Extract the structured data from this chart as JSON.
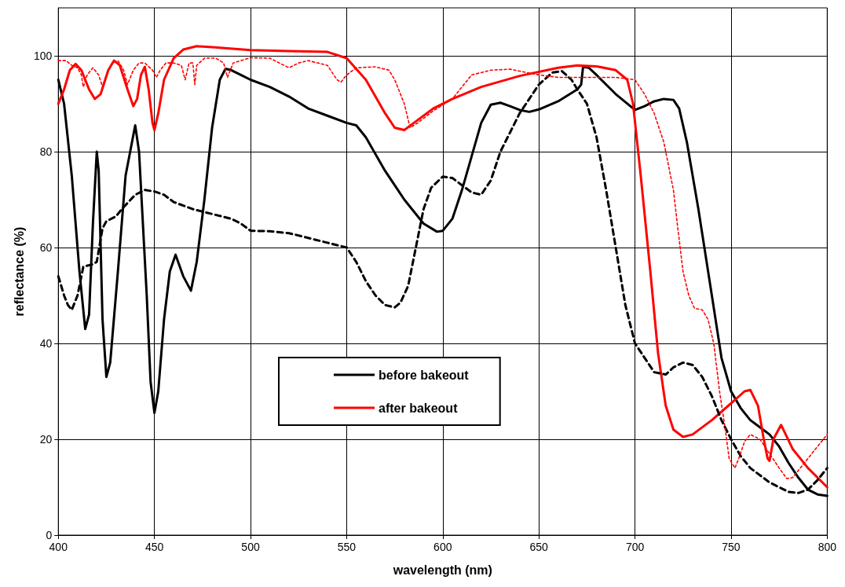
{
  "chart_data": {
    "type": "line",
    "xlabel": "wavelength (nm)",
    "ylabel": "reflectance (%)",
    "xlim": [
      400,
      800
    ],
    "xticks": [
      400,
      450,
      500,
      550,
      600,
      650,
      700,
      750,
      800
    ],
    "ylim": [
      0,
      110
    ],
    "yticks": [
      0,
      20,
      40,
      60,
      80,
      100
    ],
    "grid": true,
    "legend": "bottom",
    "marker": "none",
    "series": [
      {
        "name": "before bakeout",
        "color": "#000000",
        "line_style": "solid",
        "x": [
          400,
          403,
          407,
          411,
          414,
          416,
          418,
          420,
          421,
          423,
          425,
          427,
          431,
          435,
          440,
          442,
          446,
          448,
          450,
          452,
          455,
          458,
          461,
          465,
          469,
          472,
          476,
          480,
          484,
          487,
          490,
          495,
          500,
          510,
          520,
          530,
          540,
          550,
          555,
          560,
          570,
          580,
          590,
          597,
          600,
          605,
          610,
          615,
          620,
          625,
          630,
          635,
          640,
          645,
          650,
          660,
          670,
          672,
          673,
          676,
          680,
          690,
          700,
          705,
          710,
          715,
          720,
          723,
          727,
          733,
          740,
          745,
          750,
          755,
          760,
          765,
          770,
          775,
          780,
          785,
          790,
          795,
          800
        ],
        "values": [
          95,
          90,
          75,
          55,
          43,
          46,
          65,
          80,
          76,
          45,
          33,
          36,
          55,
          75,
          85.5,
          80,
          50,
          32,
          25.5,
          30,
          45,
          55,
          58.5,
          54,
          51,
          57,
          70,
          85,
          95,
          97.3,
          97,
          96,
          95,
          93.5,
          91.5,
          89,
          87.5,
          86,
          85.5,
          83,
          76,
          70,
          65,
          63.3,
          63.5,
          66,
          72,
          79,
          86,
          89.8,
          90.2,
          89.5,
          88.7,
          88.3,
          88.8,
          90.5,
          93,
          94,
          97.7,
          97.5,
          96,
          92,
          88.7,
          89.5,
          90.5,
          91,
          90.8,
          89,
          82,
          68,
          50,
          37,
          30,
          26.5,
          24,
          22.5,
          21,
          18.5,
          15,
          12,
          9.5,
          8.5,
          8.2
        ]
      },
      {
        "name": "after bakeout",
        "color": "#ff0000",
        "line_style": "solid",
        "x": [
          400,
          403,
          406,
          409,
          412,
          416,
          419,
          422,
          426,
          429,
          432,
          436,
          439,
          441,
          443,
          445,
          447,
          449,
          450,
          452,
          455,
          460,
          465,
          472,
          480,
          500,
          520,
          540,
          550,
          560,
          570,
          575,
          580,
          585,
          595,
          605,
          620,
          640,
          660,
          670,
          680,
          690,
          696,
          699,
          703,
          708,
          712,
          716,
          720,
          725,
          730,
          740,
          750,
          757,
          760,
          764,
          767,
          769,
          770,
          772,
          776,
          782,
          790,
          800
        ],
        "values": [
          90,
          93,
          97,
          98.3,
          97,
          93,
          91,
          92,
          97,
          99,
          98,
          93,
          89.5,
          91,
          96,
          97.7,
          93,
          86,
          84.5,
          88,
          95,
          99.5,
          101.3,
          102,
          101.8,
          101.2,
          101,
          100.8,
          99.5,
          95,
          88,
          85,
          84.5,
          86,
          89,
          91,
          93.5,
          95.8,
          97.5,
          98,
          97.8,
          97,
          95,
          90,
          75,
          55,
          38,
          27,
          22,
          20.5,
          21,
          24,
          27.5,
          30,
          30.3,
          27,
          20,
          16,
          15.5,
          20,
          23,
          18,
          14,
          10
        ]
      },
      {
        "color": "#000000",
        "line_style": "dashed",
        "x": [
          400,
          403,
          405,
          407,
          410,
          413,
          418,
          420,
          423,
          425,
          430,
          433,
          440,
          445,
          450,
          455,
          460,
          470,
          480,
          490,
          495,
          500,
          510,
          520,
          530,
          540,
          550,
          555,
          560,
          565,
          570,
          575,
          578,
          582,
          587,
          590,
          594,
          600,
          605,
          610,
          615,
          620,
          625,
          630,
          640,
          650,
          657,
          662,
          667,
          670,
          675,
          680,
          685,
          690,
          695,
          700,
          705,
          710,
          716,
          720,
          725,
          730,
          735,
          740,
          745,
          750,
          755,
          760,
          770,
          780,
          785,
          790,
          795,
          800
        ],
        "values": [
          54,
          50,
          48,
          47,
          50,
          56,
          56.5,
          57,
          64,
          65.5,
          66.5,
          68,
          71,
          72,
          71.7,
          71,
          69.5,
          68,
          67,
          66,
          65,
          63.5,
          63.4,
          63,
          62,
          61,
          60,
          57,
          53,
          50,
          48,
          47.5,
          48.5,
          52,
          62,
          68,
          72.5,
          74.8,
          74.5,
          73,
          71.5,
          71,
          74,
          80,
          88,
          94,
          96.5,
          96.8,
          95,
          93,
          90,
          83,
          72,
          60,
          48,
          40,
          37,
          34,
          33.5,
          35,
          36,
          35.5,
          33,
          29,
          24,
          20,
          16.5,
          14,
          11,
          9,
          8.8,
          9.5,
          11.5,
          14
        ]
      },
      {
        "color": "#ff0000",
        "line_style": "dotted",
        "x": [
          400,
          404,
          407,
          410,
          412,
          413,
          415,
          418,
          421,
          423,
          425,
          428,
          431,
          434,
          436,
          439,
          442,
          445,
          449,
          451,
          453,
          456,
          460,
          464,
          466,
          468,
          470,
          471,
          472,
          476,
          482,
          486,
          488,
          491,
          500,
          510,
          515,
          520,
          525,
          530,
          540,
          545,
          547,
          550,
          555,
          565,
          572,
          575,
          580,
          583,
          587,
          595,
          605,
          615,
          625,
          635,
          650,
          660,
          680,
          690,
          700,
          705,
          710,
          715,
          720,
          722,
          725,
          728,
          731,
          735,
          738,
          741,
          744,
          747,
          749,
          752,
          754,
          757,
          760,
          765,
          770,
          775,
          779,
          782,
          790,
          800
        ],
        "values": [
          99,
          99,
          98,
          97.5,
          96,
          93.5,
          96,
          97.5,
          96,
          93.5,
          96,
          98.5,
          99,
          97,
          94,
          97,
          98.5,
          98.5,
          97,
          95.5,
          97,
          98.5,
          98.5,
          98,
          95,
          98.5,
          98.5,
          94,
          98,
          99.5,
          99.5,
          98.5,
          95.5,
          98.5,
          99.6,
          99.5,
          98.5,
          97.5,
          98.5,
          99,
          98,
          95,
          94.5,
          96,
          97.5,
          97.7,
          97,
          95,
          90,
          85,
          86,
          88.5,
          91,
          96,
          97,
          97.2,
          96,
          95.5,
          95.5,
          95.5,
          95,
          92,
          88,
          82,
          72,
          65,
          55,
          50,
          47.3,
          47,
          45,
          40,
          30,
          22,
          16,
          14,
          16,
          19.5,
          21,
          20,
          17,
          14,
          11.8,
          12,
          16,
          21
        ]
      }
    ]
  }
}
